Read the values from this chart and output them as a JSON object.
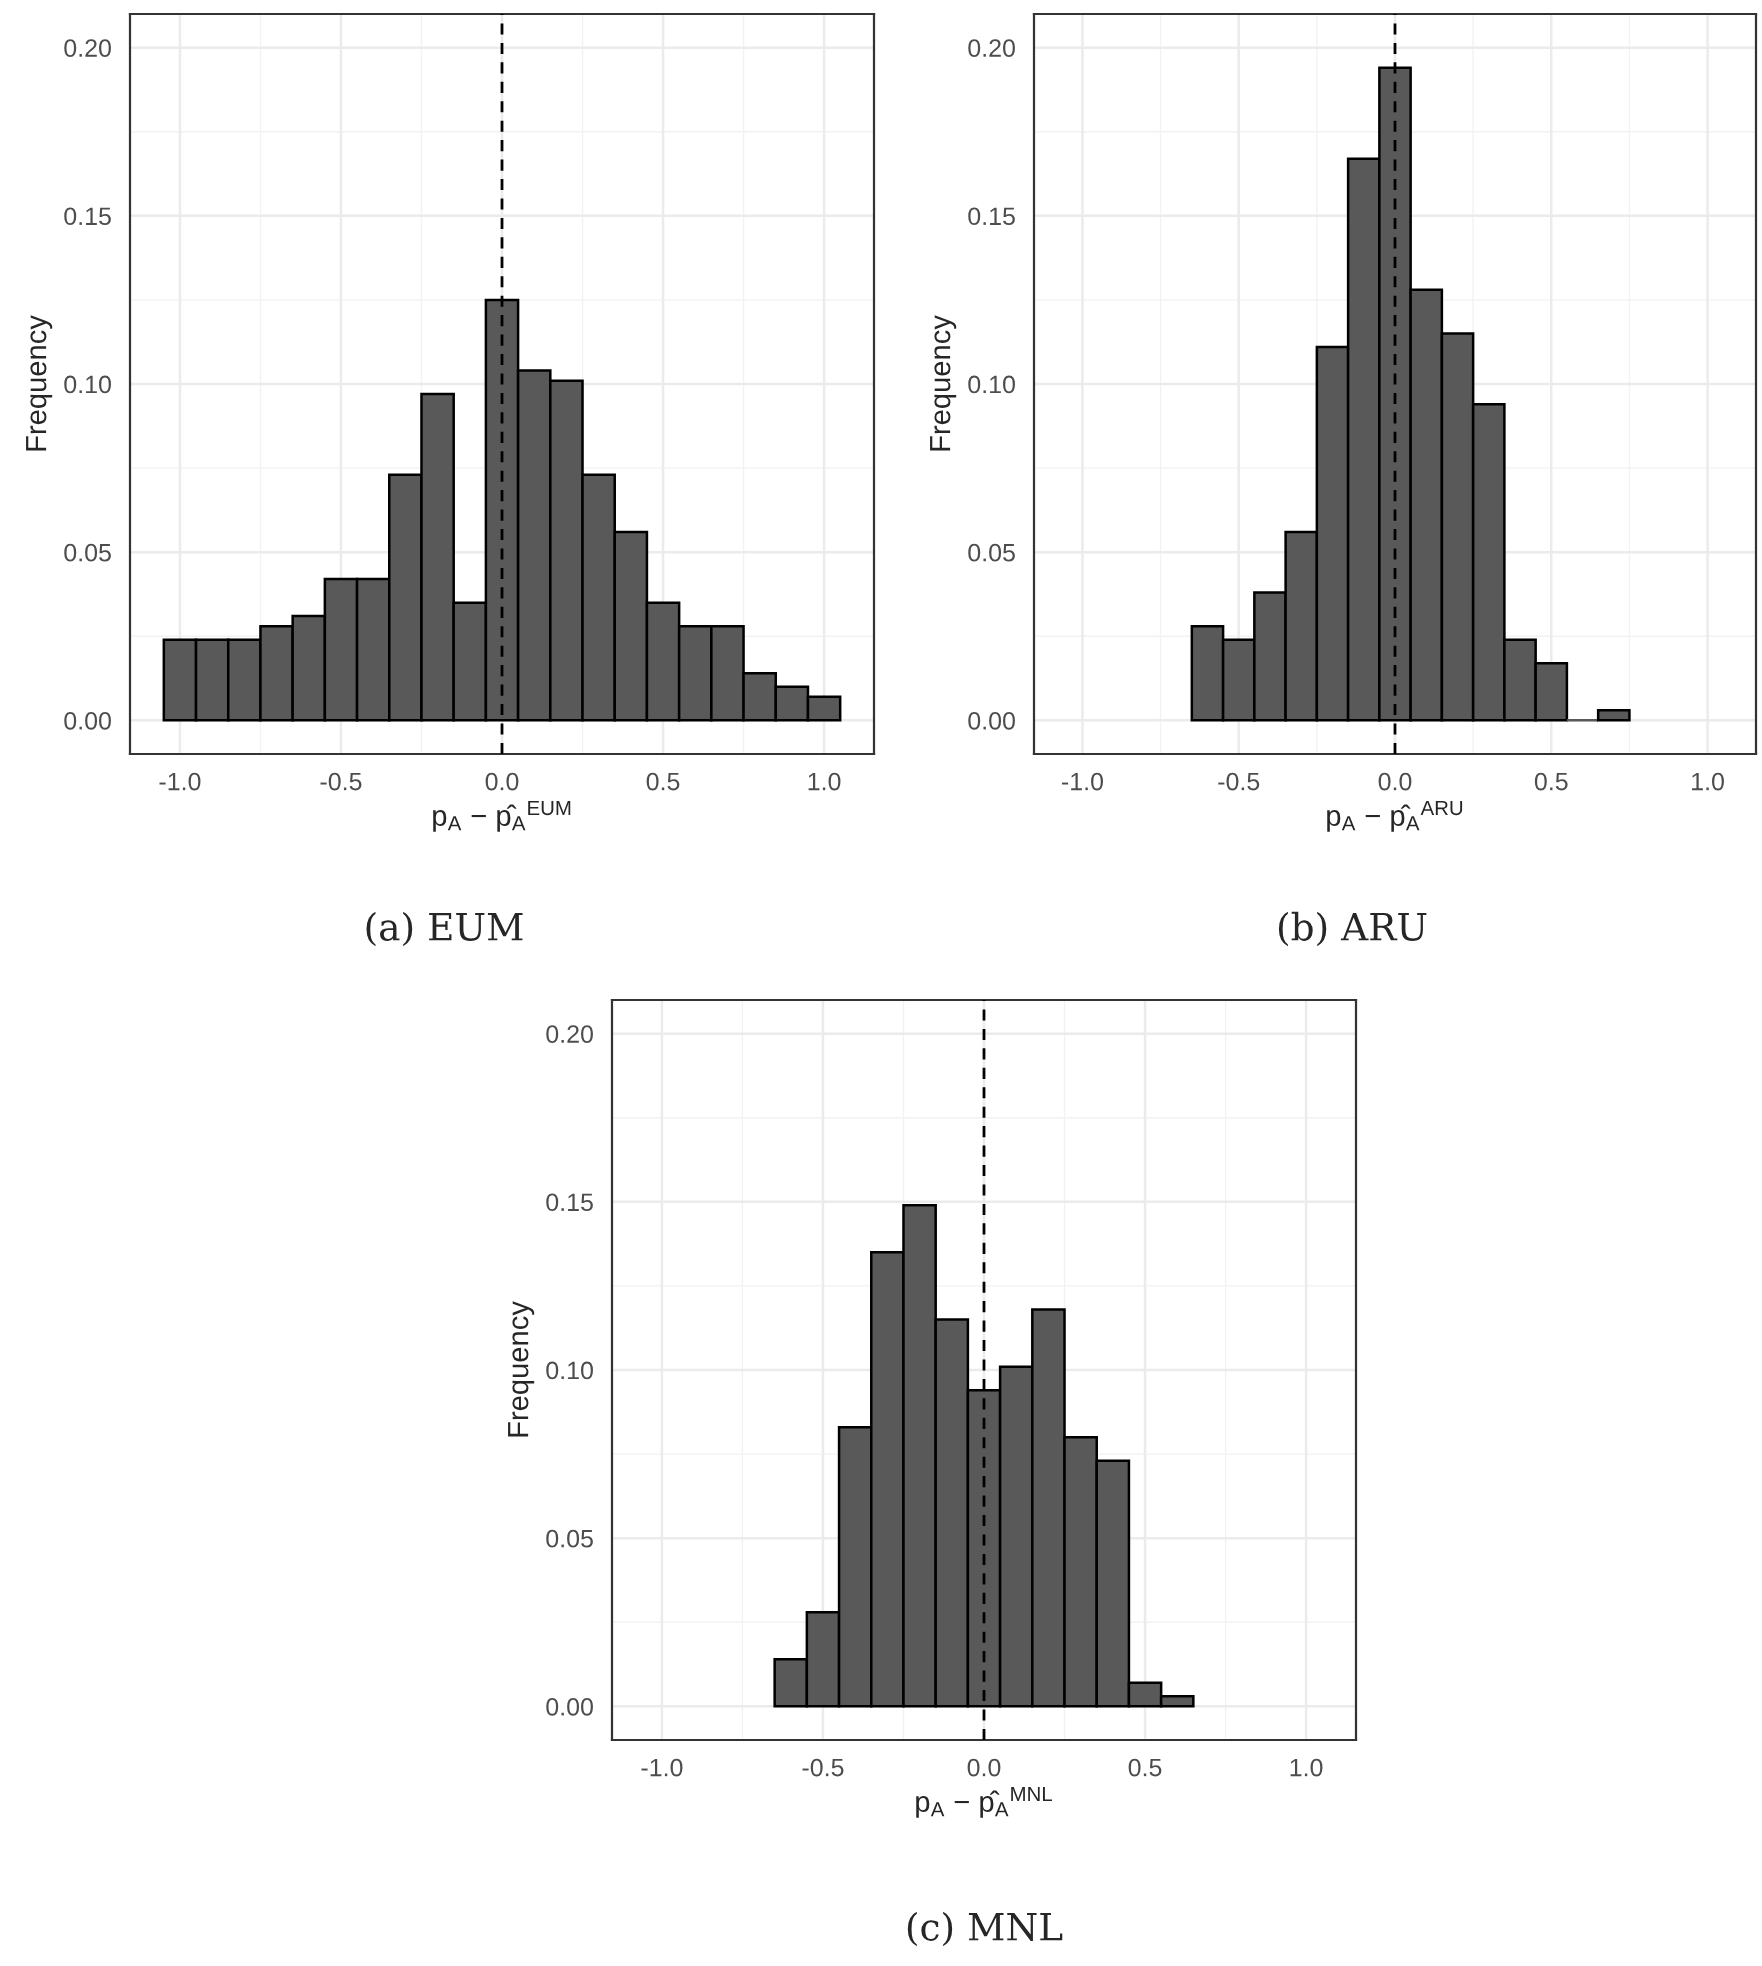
{
  "chart_data": [
    {
      "type": "histogram",
      "bins": [
        -1.05,
        -0.95,
        -0.85,
        -0.75,
        -0.65,
        -0.55,
        -0.45,
        -0.35,
        -0.25,
        -0.15,
        -0.05,
        0.05,
        0.15,
        0.25,
        0.35,
        0.45,
        0.55,
        0.65,
        0.75,
        0.85,
        0.95,
        1.05
      ],
      "values": [
        0.024,
        0.024,
        0.024,
        0.028,
        0.031,
        0.042,
        0.042,
        0.073,
        0.097,
        0.035,
        0.125,
        0.104,
        0.101,
        0.073,
        0.056,
        0.035,
        0.028,
        0.028,
        0.014,
        0.01,
        0.007
      ],
      "color": "#595959",
      "xlabel": "p$_{A}$ − p̂$_{A}$$^{EUM}$",
      "ylabel": "Frequency",
      "xlim": [
        -1.155,
        1.155
      ],
      "ylim": [
        -0.01,
        0.21
      ],
      "xticks": [
        {
          "value": -1,
          "label": "-1.0"
        },
        {
          "value": -0.5,
          "label": "-0.5"
        },
        {
          "value": 0,
          "label": "0.0"
        },
        {
          "value": 0.5,
          "label": "0.5"
        },
        {
          "value": 1,
          "label": "1.0"
        }
      ],
      "yticks": [
        {
          "value": 0,
          "label": "0.00"
        },
        {
          "value": 0.05,
          "label": "0.05"
        },
        {
          "value": 0.1,
          "label": "0.10"
        },
        {
          "value": 0.15,
          "label": "0.15"
        },
        {
          "value": 0.2,
          "label": "0.20"
        }
      ],
      "grid": true,
      "ref_lines": [
        {
          "axis": "x",
          "value": 0,
          "line_style": "dashed"
        }
      ],
      "annotations": [
        "(a) EUM"
      ]
    },
    {
      "type": "histogram",
      "bins": [
        -0.65,
        -0.55,
        -0.45,
        -0.35,
        -0.25,
        -0.15,
        -0.05,
        0.05,
        0.15,
        0.25,
        0.35,
        0.45,
        0.55,
        0.65,
        0.75
      ],
      "values": [
        0.028,
        0.024,
        0.038,
        0.056,
        0.111,
        0.167,
        0.194,
        0.128,
        0.115,
        0.094,
        0.024,
        0.017,
        0,
        0.003
      ],
      "color": "#595959",
      "xlabel": "p$_{A}$ − p̂$_{A}$$^{ARU}$",
      "ylabel": "Frequency",
      "xlim": [
        -1.155,
        1.155
      ],
      "ylim": [
        -0.01,
        0.21
      ],
      "xticks": [
        {
          "value": -1,
          "label": "-1.0"
        },
        {
          "value": -0.5,
          "label": "-0.5"
        },
        {
          "value": 0,
          "label": "0.0"
        },
        {
          "value": 0.5,
          "label": "0.5"
        },
        {
          "value": 1,
          "label": "1.0"
        }
      ],
      "yticks": [
        {
          "value": 0,
          "label": "0.00"
        },
        {
          "value": 0.05,
          "label": "0.05"
        },
        {
          "value": 0.1,
          "label": "0.10"
        },
        {
          "value": 0.15,
          "label": "0.15"
        },
        {
          "value": 0.2,
          "label": "0.20"
        }
      ],
      "grid": true,
      "ref_lines": [
        {
          "axis": "x",
          "value": 0,
          "line_style": "dashed"
        }
      ],
      "annotations": [
        "(b) ARU"
      ]
    },
    {
      "type": "histogram",
      "bins": [
        -0.65,
        -0.55,
        -0.45,
        -0.35,
        -0.25,
        -0.15,
        -0.05,
        0.05,
        0.15,
        0.25,
        0.35,
        0.45,
        0.55,
        0.65
      ],
      "values": [
        0.014,
        0.028,
        0.083,
        0.135,
        0.149,
        0.115,
        0.094,
        0.101,
        0.118,
        0.08,
        0.073,
        0.007,
        0.003
      ],
      "color": "#595959",
      "xlabel": "p$_{A}$ − p̂$_{A}$$^{MNL}$",
      "ylabel": "Frequency",
      "xlim": [
        -1.155,
        1.155
      ],
      "ylim": [
        -0.01,
        0.21
      ],
      "xticks": [
        {
          "value": -1,
          "label": "-1.0"
        },
        {
          "value": -0.5,
          "label": "-0.5"
        },
        {
          "value": 0,
          "label": "0.0"
        },
        {
          "value": 0.5,
          "label": "0.5"
        },
        {
          "value": 1,
          "label": "1.0"
        }
      ],
      "yticks": [
        {
          "value": 0,
          "label": "0.00"
        },
        {
          "value": 0.05,
          "label": "0.05"
        },
        {
          "value": 0.1,
          "label": "0.10"
        },
        {
          "value": 0.15,
          "label": "0.15"
        },
        {
          "value": 0.2,
          "label": "0.20"
        }
      ],
      "grid": true,
      "ref_lines": [
        {
          "axis": "x",
          "value": 0,
          "line_style": "dashed"
        }
      ],
      "annotations": [
        "(c) MNL"
      ]
    }
  ]
}
